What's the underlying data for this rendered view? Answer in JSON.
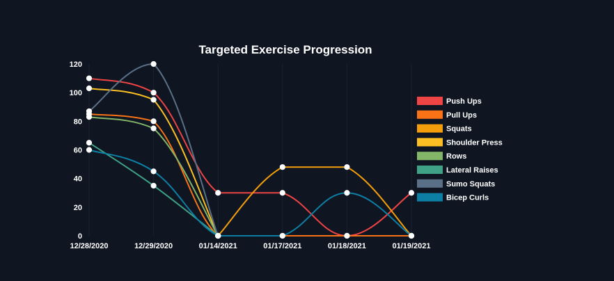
{
  "chart_data": {
    "type": "line",
    "title": "Targeted Exercise Progression",
    "xlabel": "",
    "ylabel": "",
    "categories": [
      "12/28/2020",
      "12/29/2020",
      "01/14/2021",
      "01/17/2021",
      "01/18/2021",
      "01/19/2021"
    ],
    "ylim": [
      0,
      120
    ],
    "yticks": [
      0,
      20,
      40,
      60,
      80,
      100,
      120
    ],
    "grid": false,
    "legend_position": "right",
    "series": [
      {
        "name": "Push Ups",
        "color": "#ef4444",
        "values": [
          110,
          100,
          30,
          30,
          0,
          30
        ]
      },
      {
        "name": "Pull Ups",
        "color": "#f97316",
        "values": [
          85,
          80,
          0,
          0,
          0,
          0
        ]
      },
      {
        "name": "Squats",
        "color": "#f59e0b",
        "values": [
          null,
          null,
          0,
          48,
          48,
          0
        ]
      },
      {
        "name": "Shoulder Press",
        "color": "#fbbf24",
        "values": [
          103,
          95,
          0,
          null,
          null,
          null
        ]
      },
      {
        "name": "Rows",
        "color": "#84b66a",
        "values": [
          83,
          75,
          0,
          null,
          null,
          null
        ]
      },
      {
        "name": "Lateral Raises",
        "color": "#3fa287",
        "values": [
          65,
          35,
          0,
          null,
          null,
          null
        ]
      },
      {
        "name": "Sumo Squats",
        "color": "#5a7087",
        "values": [
          87,
          120,
          0,
          null,
          null,
          null
        ]
      },
      {
        "name": "Bicep Curls",
        "color": "#0e7fa4",
        "values": [
          60,
          45,
          0,
          0,
          30,
          0
        ]
      }
    ]
  }
}
